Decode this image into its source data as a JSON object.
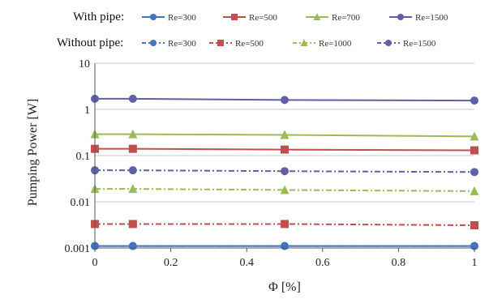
{
  "chart_data": {
    "type": "line",
    "title": "",
    "xlabel": "Φ [%]",
    "ylabel": "Pumping Power [W]",
    "xlim": [
      0,
      1
    ],
    "ylim": [
      0.001,
      10
    ],
    "yscale": "log",
    "x_ticks": [
      "0",
      "0.2",
      "0.4",
      "0.6",
      "0.8",
      "1"
    ],
    "y_ticks": [
      "0.001",
      "0.01",
      "0.1",
      "1",
      "10"
    ],
    "grid": "horizontal",
    "legend_groups": [
      "With pipe:",
      "Without pipe:"
    ],
    "series": [
      {
        "group": "With pipe:",
        "name": "Re=300",
        "color": "#4472c4",
        "marker": "circle",
        "dash": "solid",
        "x": [
          0,
          0.1,
          0.5,
          1
        ],
        "y": [
          0.0011,
          0.0011,
          0.0011,
          0.0011
        ]
      },
      {
        "group": "With pipe:",
        "name": "Re=500",
        "color": "#c0504d",
        "marker": "square",
        "dash": "solid",
        "x": [
          0,
          0.1,
          0.5,
          1
        ],
        "y": [
          0.14,
          0.14,
          0.135,
          0.13
        ]
      },
      {
        "group": "With pipe:",
        "name": "Re=700",
        "color": "#9bbb59",
        "marker": "triangle",
        "dash": "solid",
        "x": [
          0,
          0.1,
          0.5,
          1
        ],
        "y": [
          0.29,
          0.29,
          0.28,
          0.26
        ]
      },
      {
        "group": "With pipe:",
        "name": "Re=1500",
        "color": "#6060a8",
        "marker": "circle",
        "dash": "solid",
        "x": [
          0,
          0.1,
          0.5,
          1
        ],
        "y": [
          1.7,
          1.7,
          1.6,
          1.55
        ]
      },
      {
        "group": "Without pipe:",
        "name": "Re=300",
        "color": "#4472c4",
        "marker": "circle",
        "dash": "dashdot",
        "x": [
          0,
          0.1,
          0.5,
          1
        ],
        "y": [
          0.0011,
          0.0011,
          0.0011,
          0.0011
        ]
      },
      {
        "group": "Without pipe:",
        "name": "Re=500",
        "color": "#c0504d",
        "marker": "square",
        "dash": "dashdot",
        "x": [
          0,
          0.1,
          0.5,
          1
        ],
        "y": [
          0.0033,
          0.0033,
          0.0033,
          0.0031
        ]
      },
      {
        "group": "Without pipe:",
        "name": "Re=1000",
        "color": "#9bbb59",
        "marker": "triangle",
        "dash": "dashdot",
        "x": [
          0,
          0.1,
          0.5,
          1
        ],
        "y": [
          0.019,
          0.019,
          0.018,
          0.017
        ]
      },
      {
        "group": "Without pipe:",
        "name": "Re=1500",
        "color": "#6060a8",
        "marker": "circle",
        "dash": "dashdot",
        "x": [
          0,
          0.1,
          0.5,
          1
        ],
        "y": [
          0.048,
          0.048,
          0.046,
          0.044
        ]
      }
    ]
  }
}
